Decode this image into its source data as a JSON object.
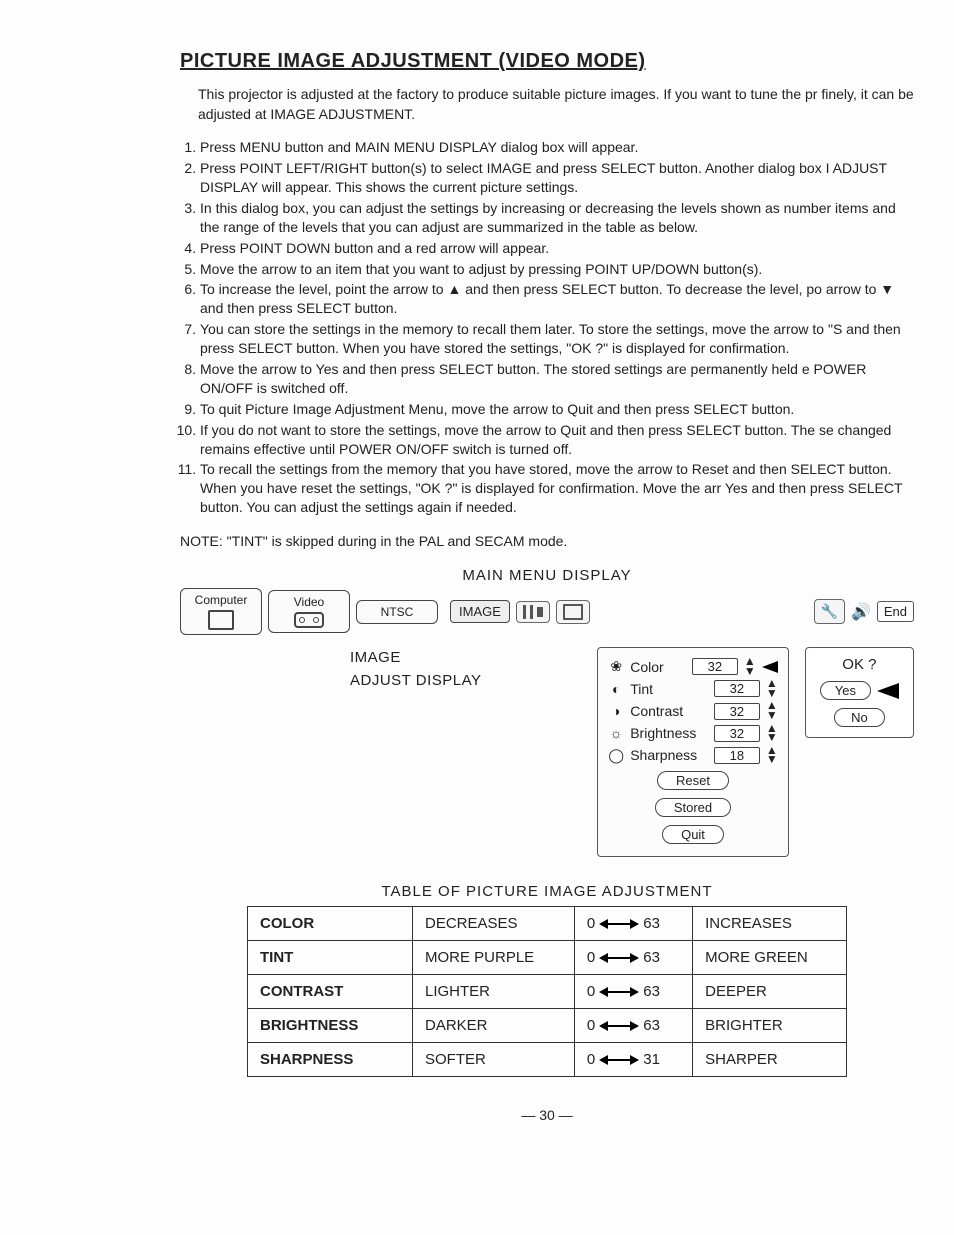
{
  "title": "PICTURE IMAGE ADJUSTMENT (VIDEO MODE)",
  "intro": "This projector is adjusted at the factory to produce suitable picture images. If you want to tune the pr finely, it can be adjusted at IMAGE ADJUSTMENT.",
  "steps": [
    "Press MENU button and MAIN MENU DISPLAY dialog box will appear.",
    "Press POINT LEFT/RIGHT button(s) to select IMAGE and press SELECT button. Another dialog box I ADJUST DISPLAY will appear. This shows the current picture settings.",
    "In this dialog box, you can adjust the settings by increasing or decreasing the levels shown as number items and the range of the levels that you can adjust are summarized in the table as below.",
    "Press POINT DOWN button and a red arrow will appear.",
    "Move the arrow to an item that you want to adjust by pressing POINT UP/DOWN button(s).",
    "To increase the level, point the arrow to ▲ and then press SELECT button. To decrease the level, po arrow to ▼ and then press SELECT button.",
    "You can store the settings in the memory to recall them later. To store the settings, move the arrow to \"S and then press SELECT button. When you have stored the settings, \"OK ?\" is displayed for confirmation.",
    "Move the arrow to Yes and then press SELECT button. The stored settings are permanently held e POWER ON/OFF is switched off.",
    "To quit Picture Image Adjustment Menu, move the arrow to Quit and then press SELECT button.",
    "If you do not want to store the settings, move the arrow to Quit and then press SELECT button. The se changed remains effective until POWER ON/OFF switch is turned off.",
    "To recall the settings from the memory that you have stored, move the arrow to Reset and then SELECT button. When you have reset the settings, \"OK ?\" is displayed for confirmation. Move the arr Yes and then press SELECT button. You can adjust the settings again if needed."
  ],
  "note": "NOTE: \"TINT\" is skipped during in the PAL and SECAM mode.",
  "main_menu_title": "MAIN MENU DISPLAY",
  "menubar": {
    "computer": "Computer",
    "video": "Video",
    "ntsc": "NTSC",
    "image": "IMAGE",
    "end": "End"
  },
  "adjust_label_1": "IMAGE",
  "adjust_label_2": "ADJUST DISPLAY",
  "adjust_items": [
    {
      "icon": "❀",
      "name": "Color",
      "value": "32"
    },
    {
      "icon": "◐",
      "name": "Tint",
      "value": "32"
    },
    {
      "icon": "◑",
      "name": "Contrast",
      "value": "32"
    },
    {
      "icon": "☼",
      "name": "Brightness",
      "value": "32"
    },
    {
      "icon": "◯",
      "name": "Sharpness",
      "value": "18"
    }
  ],
  "buttons": {
    "reset": "Reset",
    "stored": "Stored",
    "quit": "Quit"
  },
  "ok_panel": {
    "title": "OK ?",
    "yes": "Yes",
    "no": "No"
  },
  "table_title": "TABLE OF PICTURE IMAGE ADJUSTMENT",
  "table": {
    "rows": [
      {
        "param": "COLOR",
        "low": "DECREASES",
        "min": "0",
        "max": "63",
        "high": "INCREASES"
      },
      {
        "param": "TINT",
        "low": "MORE PURPLE",
        "min": "0",
        "max": "63",
        "high": "MORE GREEN"
      },
      {
        "param": "CONTRAST",
        "low": "LIGHTER",
        "min": "0",
        "max": "63",
        "high": "DEEPER"
      },
      {
        "param": "BRIGHTNESS",
        "low": "DARKER",
        "min": "0",
        "max": "63",
        "high": "BRIGHTER"
      },
      {
        "param": "SHARPNESS",
        "low": "SOFTER",
        "min": "0",
        "max": "31",
        "high": "SHARPER"
      }
    ]
  },
  "page_number": "— 30 —",
  "colors": {
    "text": "#222222",
    "border": "#333333",
    "panel_bg": "#fcfcfc",
    "background": "#fdfdfd"
  }
}
